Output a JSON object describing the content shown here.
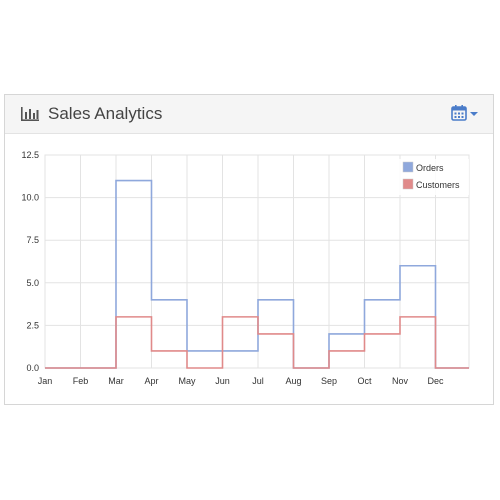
{
  "widget": {
    "title": "Sales Analytics",
    "header_icon": "bar-chart-icon",
    "date_icon": "calendar-icon",
    "accent": "#4a7cc9"
  },
  "chart_data": {
    "type": "line",
    "step": true,
    "categories": [
      "Jan",
      "Feb",
      "Mar",
      "Apr",
      "May",
      "Jun",
      "Jul",
      "Aug",
      "Sep",
      "Oct",
      "Nov",
      "Dec"
    ],
    "series": [
      {
        "name": "Orders",
        "color": "#8fa8dc",
        "values": [
          0,
          0,
          11,
          4,
          1,
          1,
          4,
          0,
          2,
          4,
          6,
          0
        ]
      },
      {
        "name": "Customers",
        "color": "#e08a8a",
        "values": [
          0,
          0,
          3,
          1,
          0,
          3,
          2,
          0,
          1,
          2,
          3,
          0
        ]
      }
    ],
    "yticks": [
      "0.0",
      "2.5",
      "5.0",
      "7.5",
      "10.0",
      "12.5"
    ],
    "ylim": [
      0,
      12.5
    ],
    "grid": true,
    "legend_position": "top-right"
  }
}
